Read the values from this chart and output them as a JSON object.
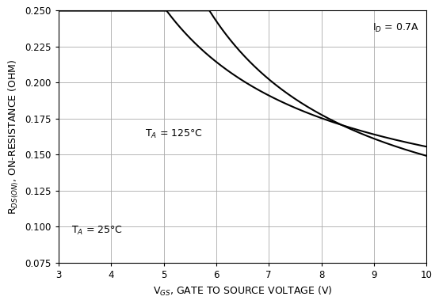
{
  "title": "",
  "xlabel": "V$_{GS}$, GATE TO SOURCE VOLTAGE (V)",
  "ylabel": "R$_{DS(ON)}$, ON-RESISTANCE (OHM)",
  "xlim": [
    3,
    10
  ],
  "ylim": [
    0.075,
    0.25
  ],
  "xticks": [
    3,
    4,
    5,
    6,
    7,
    8,
    9,
    10
  ],
  "yticks": [
    0.075,
    0.1,
    0.125,
    0.15,
    0.175,
    0.2,
    0.225,
    0.25
  ],
  "annotation_id": "I$_D$ = 0.7A",
  "annotation_ta25": "T$_A$ = 25°C",
  "annotation_ta125": "T$_A$ = 125°C",
  "line_color": "#000000",
  "grid_color": "#aaaaaa",
  "background_color": "#ffffff",
  "curve25_params": {
    "a": 0.522,
    "b": 2.87,
    "c": 0.076
  },
  "curve125_params": {
    "a": 0.492,
    "b": 1.88,
    "c": 0.095
  }
}
